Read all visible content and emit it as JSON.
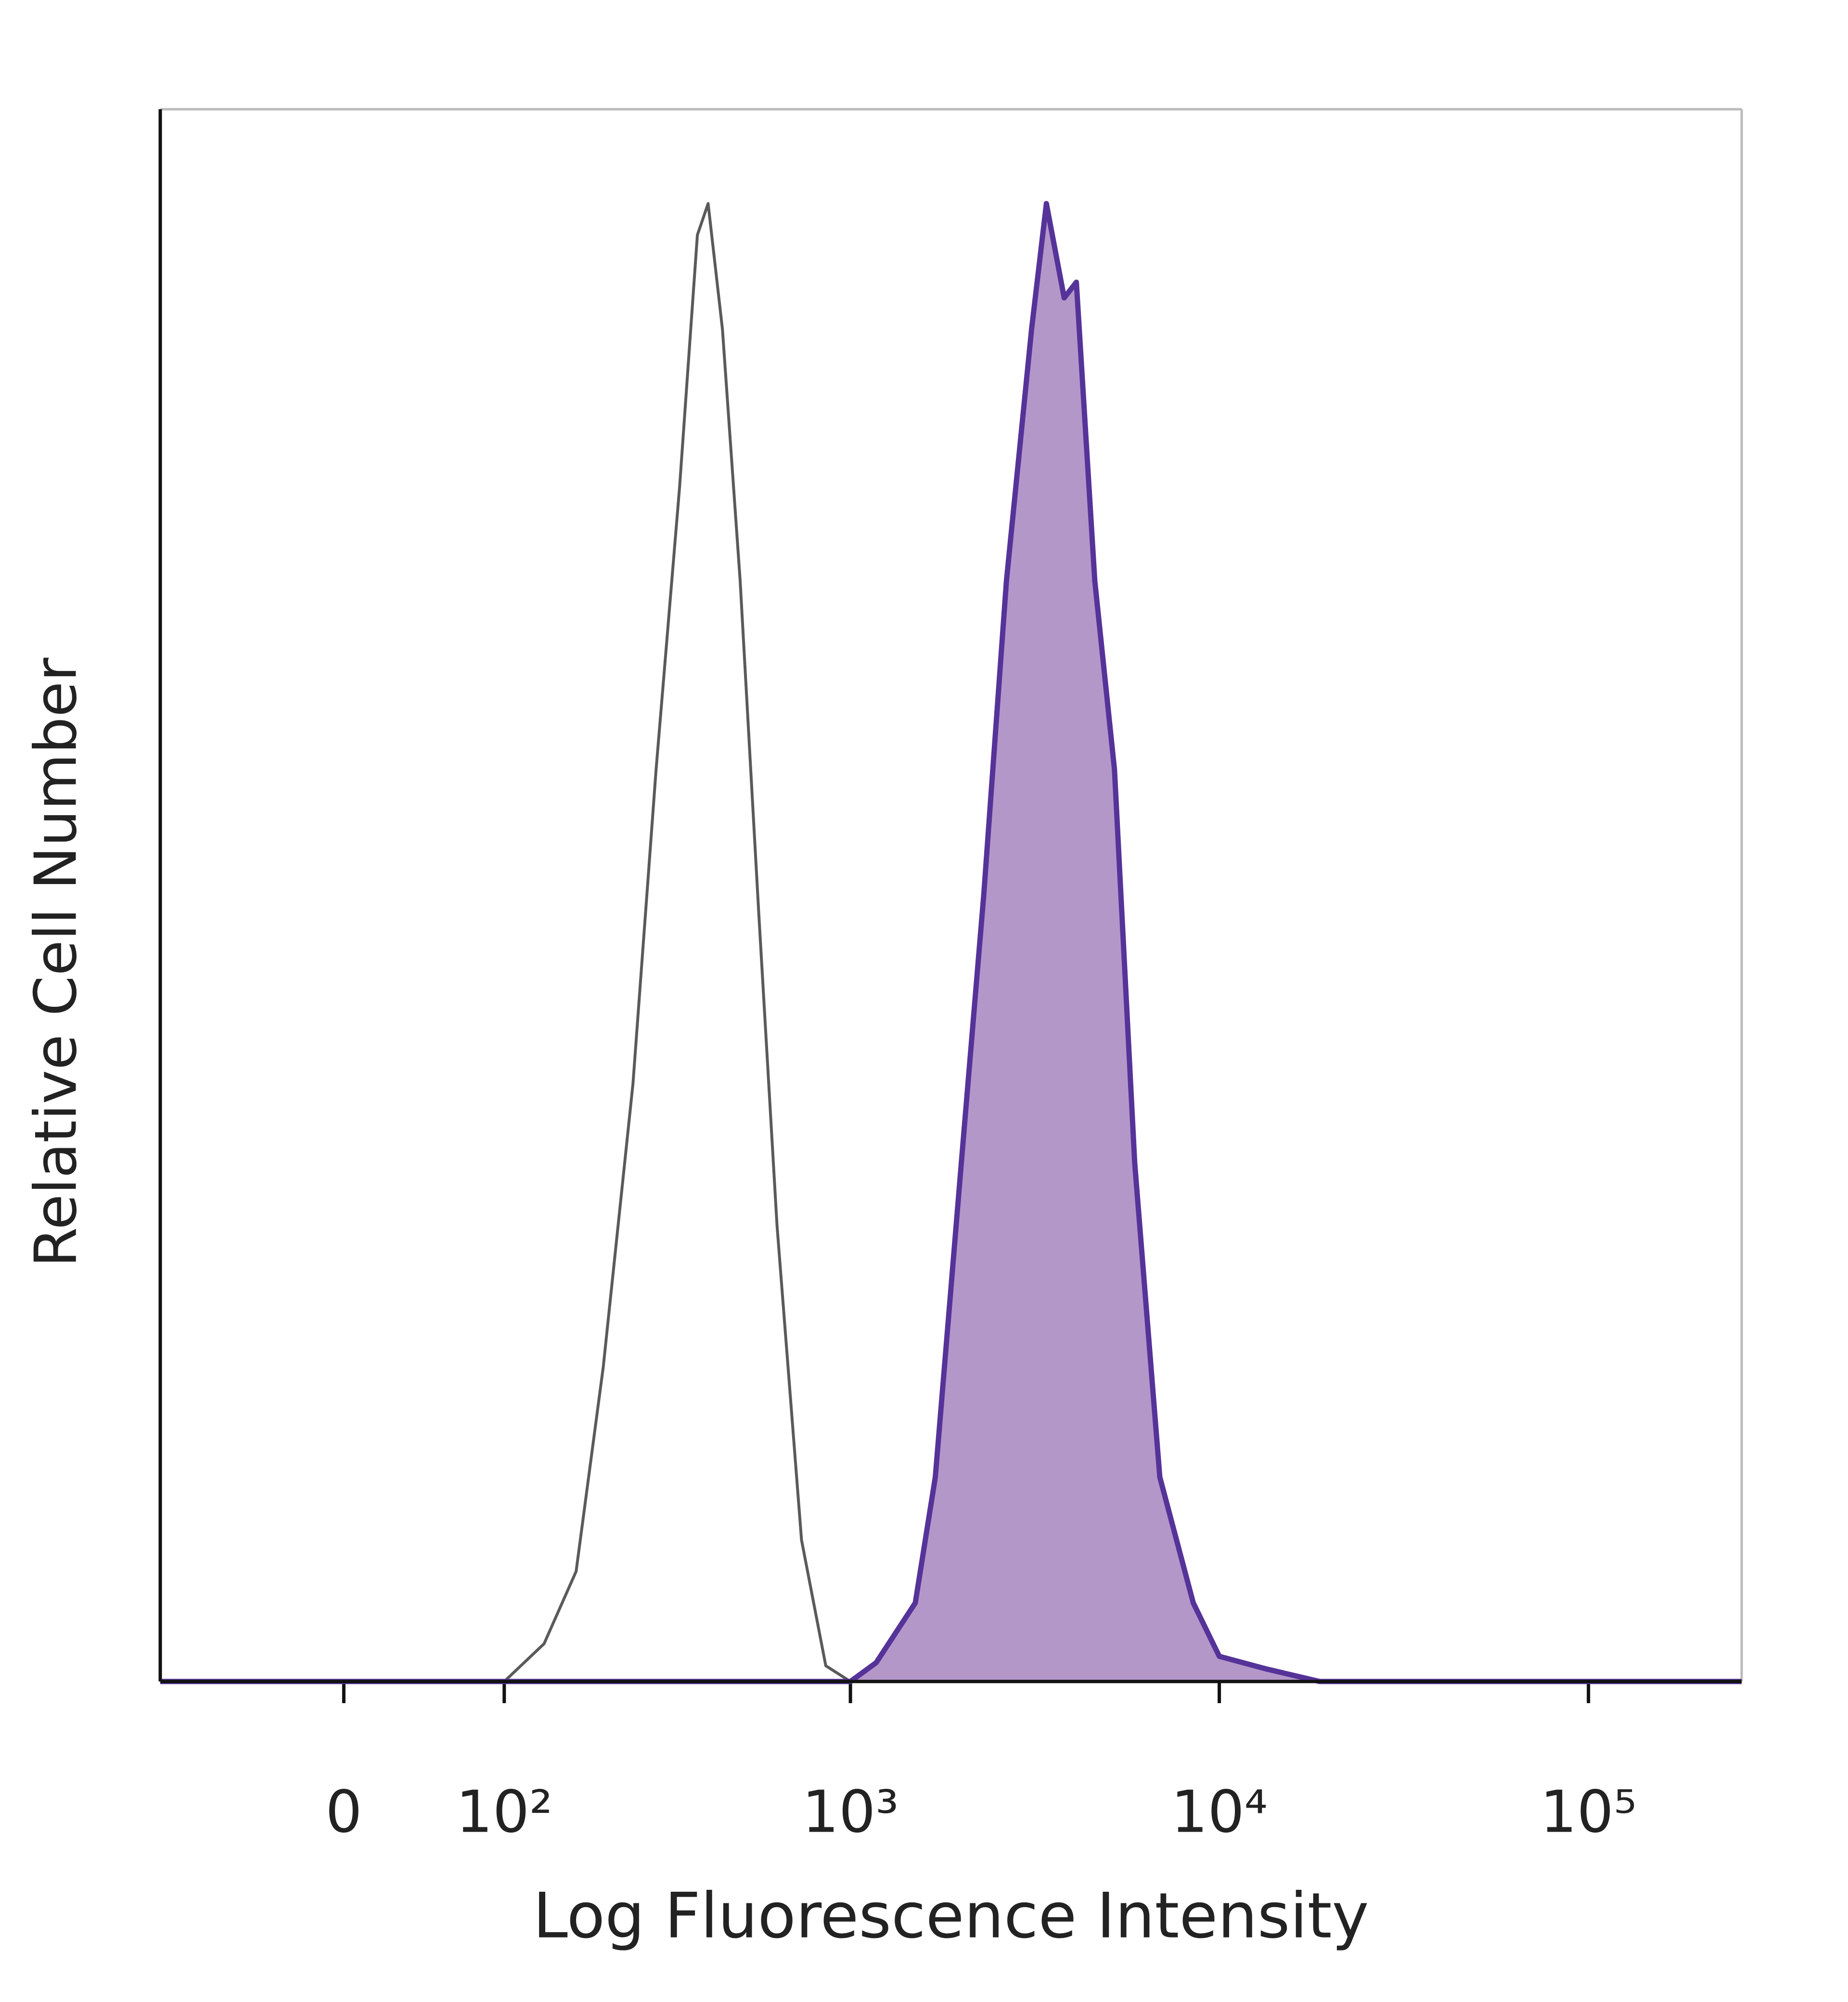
{
  "chart_data": {
    "type": "line",
    "x_label": "Log Fluorescence Intensity",
    "y_label": "Relative Cell Number",
    "xscale": "biexponential",
    "xlim": [
      -120,
      260000
    ],
    "ylim": [
      0,
      100
    ],
    "xticks": [
      0,
      {
        "value": 100,
        "label": "10²"
      },
      {
        "value": 1000,
        "label": "10³"
      },
      {
        "value": 10000,
        "label": "10⁴"
      },
      {
        "value": 100000,
        "label": "10⁵"
      }
    ],
    "series": [
      {
        "color": "#5a5a5a",
        "x": [
          -120,
          0,
          100,
          136,
          171,
          206,
          251,
          292,
          340,
          381,
          408,
          447,
          500,
          562,
          631,
          736,
          857,
          1000
        ],
        "values": [
          0,
          0,
          0,
          2.4,
          7,
          20,
          38,
          58,
          76,
          92,
          94,
          86,
          70,
          49,
          29,
          9,
          1,
          0
        ]
      },
      {
        "color": "#553399",
        "fill": "#b497c9",
        "x": [
          -120,
          0,
          1000,
          1175,
          1500,
          1700,
          2000,
          2300,
          2650,
          3100,
          3400,
          3800,
          4100,
          4600,
          5200,
          5900,
          6900,
          8500,
          10000,
          13400,
          18700,
          260000
        ],
        "values": [
          0,
          0,
          0,
          1.2,
          5,
          13,
          33,
          50,
          70,
          86,
          94,
          88,
          89,
          70,
          58,
          33,
          13,
          5,
          1.6,
          0.8,
          0,
          0
        ]
      }
    ]
  }
}
